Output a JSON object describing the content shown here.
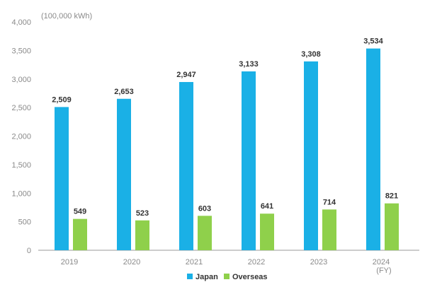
{
  "chart_data": {
    "type": "bar",
    "y_unit": "(100,000 kWh)",
    "x_unit": "(FY)",
    "categories": [
      "2019",
      "2020",
      "2021",
      "2022",
      "2023",
      "2024"
    ],
    "series": [
      {
        "name": "Japan",
        "color": "#1ab0e6",
        "values": [
          2509,
          2653,
          2947,
          3133,
          3308,
          3534
        ]
      },
      {
        "name": "Overseas",
        "color": "#8fd04b",
        "values": [
          549,
          523,
          603,
          641,
          714,
          821
        ]
      }
    ],
    "data_labels": [
      [
        "2,509",
        "2,653",
        "2,947",
        "3,133",
        "3,308",
        "3,534"
      ],
      [
        "549",
        "523",
        "603",
        "641",
        "714",
        "821"
      ]
    ],
    "ylim": [
      0,
      4000
    ],
    "yticks": [
      0,
      500,
      1000,
      1500,
      2000,
      2500,
      3000,
      3500,
      4000
    ],
    "ytick_labels": [
      "0",
      "500",
      "1,000",
      "1,500",
      "2,000",
      "2,500",
      "3,000",
      "3,500",
      "4,000"
    ],
    "grid": false,
    "legend_position": "bottom-center"
  }
}
